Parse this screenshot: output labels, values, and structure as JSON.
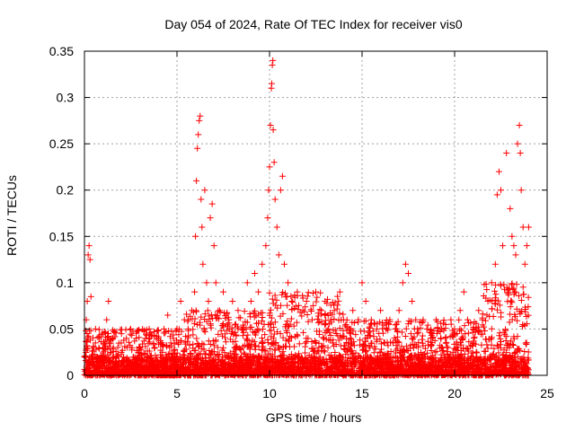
{
  "chart_data": {
    "type": "scatter",
    "title": "Day 054 of 2024, Rate Of TEC Index for receiver vis0",
    "xlabel": "GPS time / hours",
    "ylabel": "ROTI / TECUs",
    "xlim": [
      0,
      25
    ],
    "ylim": [
      0,
      0.35
    ],
    "xticks": [
      0,
      5,
      10,
      15,
      20,
      25
    ],
    "xtick_labels": [
      "0",
      "5",
      "10",
      "15",
      "20",
      "25"
    ],
    "yticks": [
      0,
      0.05,
      0.1,
      0.15,
      0.2,
      0.25,
      0.3,
      0.35
    ],
    "ytick_labels": [
      "0",
      "0.05",
      "0.1",
      "0.15",
      "0.2",
      "0.25",
      "0.3",
      "0.35"
    ],
    "grid": true,
    "legend": "none",
    "marker": "plus",
    "color": "#ff0000",
    "series": [
      {
        "points": [
          [
            0.0,
            0.02
          ],
          [
            0.1,
            0.06
          ],
          [
            0.15,
            0.08
          ],
          [
            0.2,
            0.13
          ],
          [
            0.25,
            0.14
          ],
          [
            0.3,
            0.125
          ],
          [
            0.35,
            0.085
          ],
          [
            0.5,
            0.03
          ],
          [
            0.6,
            0.05
          ],
          [
            0.8,
            0.04
          ],
          [
            1.0,
            0.03
          ],
          [
            1.2,
            0.06
          ],
          [
            1.3,
            0.08
          ],
          [
            1.5,
            0.04
          ],
          [
            1.8,
            0.03
          ],
          [
            2.0,
            0.045
          ],
          [
            2.3,
            0.03
          ],
          [
            2.5,
            0.05
          ],
          [
            2.8,
            0.04
          ],
          [
            3.0,
            0.03
          ],
          [
            3.3,
            0.04
          ],
          [
            3.5,
            0.05
          ],
          [
            3.8,
            0.03
          ],
          [
            4.0,
            0.04
          ],
          [
            4.3,
            0.05
          ],
          [
            4.5,
            0.065
          ],
          [
            4.6,
            0.03
          ],
          [
            4.8,
            0.04
          ],
          [
            5.0,
            0.05
          ],
          [
            5.2,
            0.08
          ],
          [
            5.4,
            0.06
          ],
          [
            5.6,
            0.05
          ],
          [
            5.8,
            0.07
          ],
          [
            5.95,
            0.09
          ],
          [
            6.0,
            0.15
          ],
          [
            6.05,
            0.21
          ],
          [
            6.1,
            0.245
          ],
          [
            6.15,
            0.26
          ],
          [
            6.2,
            0.275
          ],
          [
            6.25,
            0.28
          ],
          [
            6.3,
            0.19
          ],
          [
            6.35,
            0.16
          ],
          [
            6.4,
            0.12
          ],
          [
            6.5,
            0.2
          ],
          [
            6.6,
            0.1
          ],
          [
            6.7,
            0.08
          ],
          [
            6.8,
            0.17
          ],
          [
            6.9,
            0.185
          ],
          [
            7.0,
            0.14
          ],
          [
            7.1,
            0.1
          ],
          [
            7.3,
            0.07
          ],
          [
            7.5,
            0.09
          ],
          [
            7.8,
            0.06
          ],
          [
            8.0,
            0.08
          ],
          [
            8.3,
            0.07
          ],
          [
            8.5,
            0.05
          ],
          [
            8.8,
            0.1
          ],
          [
            9.0,
            0.08
          ],
          [
            9.2,
            0.11
          ],
          [
            9.4,
            0.09
          ],
          [
            9.6,
            0.12
          ],
          [
            9.8,
            0.14
          ],
          [
            9.9,
            0.17
          ],
          [
            9.95,
            0.2
          ],
          [
            10.0,
            0.225
          ],
          [
            10.05,
            0.27
          ],
          [
            10.1,
            0.31
          ],
          [
            10.12,
            0.315
          ],
          [
            10.15,
            0.335
          ],
          [
            10.18,
            0.34
          ],
          [
            10.2,
            0.265
          ],
          [
            10.25,
            0.23
          ],
          [
            10.3,
            0.19
          ],
          [
            10.4,
            0.16
          ],
          [
            10.5,
            0.13
          ],
          [
            10.6,
            0.2
          ],
          [
            10.7,
            0.215
          ],
          [
            10.8,
            0.12
          ],
          [
            11.0,
            0.1
          ],
          [
            11.2,
            0.08
          ],
          [
            11.5,
            0.09
          ],
          [
            11.8,
            0.07
          ],
          [
            12.0,
            0.08
          ],
          [
            12.3,
            0.06
          ],
          [
            12.5,
            0.09
          ],
          [
            12.8,
            0.07
          ],
          [
            13.0,
            0.08
          ],
          [
            13.3,
            0.06
          ],
          [
            13.5,
            0.07
          ],
          [
            13.8,
            0.09
          ],
          [
            14.0,
            0.06
          ],
          [
            14.3,
            0.05
          ],
          [
            14.5,
            0.07
          ],
          [
            14.8,
            0.06
          ],
          [
            15.0,
            0.1
          ],
          [
            15.2,
            0.08
          ],
          [
            15.5,
            0.06
          ],
          [
            15.8,
            0.05
          ],
          [
            16.0,
            0.07
          ],
          [
            16.3,
            0.05
          ],
          [
            16.5,
            0.06
          ],
          [
            16.8,
            0.05
          ],
          [
            17.0,
            0.07
          ],
          [
            17.2,
            0.1
          ],
          [
            17.35,
            0.12
          ],
          [
            17.5,
            0.11
          ],
          [
            17.7,
            0.08
          ],
          [
            17.9,
            0.06
          ],
          [
            18.0,
            0.05
          ],
          [
            18.3,
            0.06
          ],
          [
            18.5,
            0.05
          ],
          [
            18.8,
            0.04
          ],
          [
            19.0,
            0.06
          ],
          [
            19.3,
            0.05
          ],
          [
            19.5,
            0.04
          ],
          [
            19.8,
            0.06
          ],
          [
            20.0,
            0.05
          ],
          [
            20.3,
            0.07
          ],
          [
            20.5,
            0.09
          ],
          [
            20.7,
            0.06
          ],
          [
            21.0,
            0.05
          ],
          [
            21.3,
            0.07
          ],
          [
            21.5,
            0.06
          ],
          [
            21.8,
            0.08
          ],
          [
            22.0,
            0.1
          ],
          [
            22.2,
            0.12
          ],
          [
            22.3,
            0.195
          ],
          [
            22.4,
            0.22
          ],
          [
            22.5,
            0.2
          ],
          [
            22.6,
            0.14
          ],
          [
            22.8,
            0.24
          ],
          [
            23.0,
            0.18
          ],
          [
            23.1,
            0.15
          ],
          [
            23.2,
            0.14
          ],
          [
            23.3,
            0.13
          ],
          [
            23.4,
            0.25
          ],
          [
            23.5,
            0.27
          ],
          [
            23.55,
            0.24
          ],
          [
            23.6,
            0.2
          ],
          [
            23.7,
            0.16
          ],
          [
            23.8,
            0.12
          ],
          [
            23.9,
            0.14
          ],
          [
            24.0,
            0.16
          ]
        ],
        "dense_band": [
          {
            "from": 0.0,
            "to": 24.0,
            "low": 0.0,
            "high": 0.02
          },
          {
            "from": 0.0,
            "to": 5.5,
            "low": 0.0,
            "high": 0.05
          },
          {
            "from": 5.5,
            "to": 10.0,
            "low": 0.0,
            "high": 0.07
          },
          {
            "from": 10.0,
            "to": 14.0,
            "low": 0.0,
            "high": 0.09
          },
          {
            "from": 14.0,
            "to": 21.5,
            "low": 0.0,
            "high": 0.06
          },
          {
            "from": 21.5,
            "to": 24.0,
            "low": 0.0,
            "high": 0.1
          }
        ]
      }
    ]
  }
}
